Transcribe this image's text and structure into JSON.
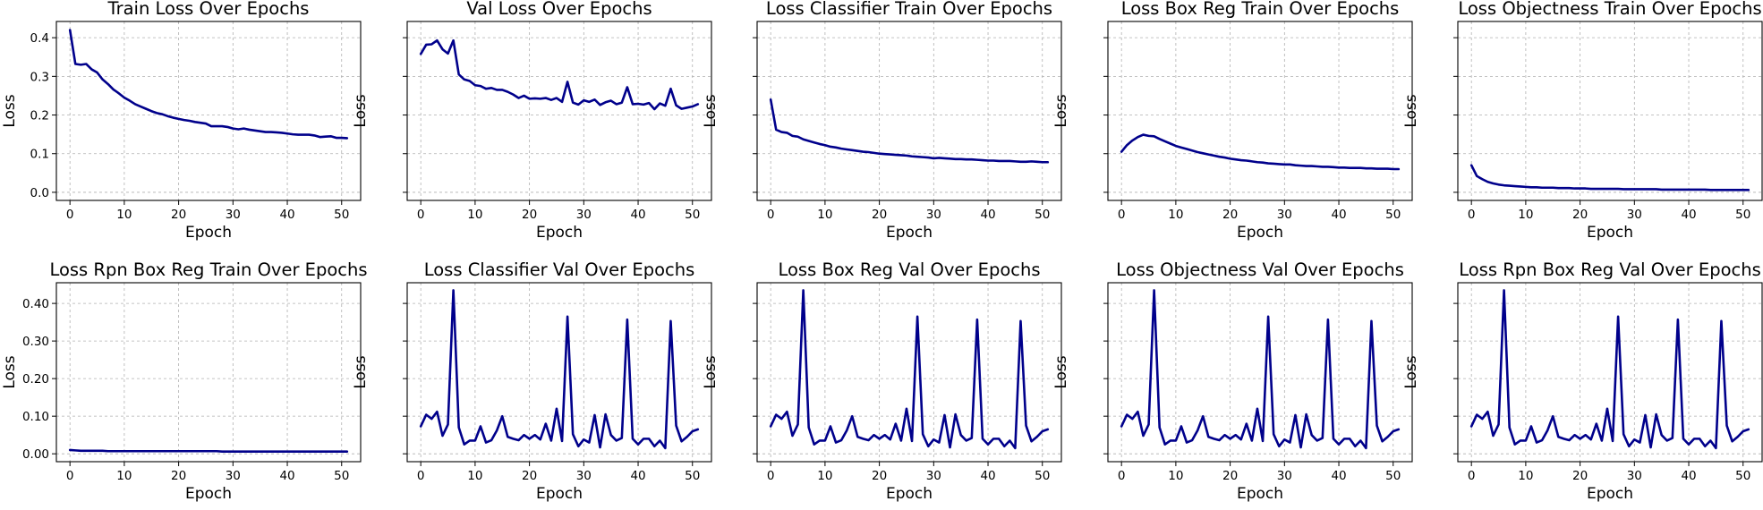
{
  "figure": {
    "line_color": "#00008b",
    "grid": true
  },
  "chart_data": [
    {
      "type": "line",
      "title": "Train Loss Over Epochs",
      "xlabel": "Epoch",
      "ylabel": "Loss",
      "xlim": [
        -2.5,
        53.5
      ],
      "ylim": [
        -0.021,
        0.442
      ],
      "xticks": [
        0,
        10,
        20,
        30,
        40,
        50
      ],
      "yticks": [
        0.0,
        0.1,
        0.2,
        0.3,
        0.4
      ],
      "ytick_labels": [
        "0.0",
        "0.1",
        "0.2",
        "0.3",
        "0.4"
      ],
      "series": [
        {
          "values": [
            0.42,
            0.332,
            0.33,
            0.332,
            0.318,
            0.31,
            0.292,
            0.28,
            0.266,
            0.256,
            0.245,
            0.237,
            0.228,
            0.222,
            0.216,
            0.21,
            0.205,
            0.202,
            0.197,
            0.193,
            0.19,
            0.187,
            0.185,
            0.182,
            0.18,
            0.178,
            0.171,
            0.171,
            0.171,
            0.169,
            0.165,
            0.163,
            0.165,
            0.162,
            0.16,
            0.158,
            0.156,
            0.156,
            0.155,
            0.154,
            0.152,
            0.15,
            0.149,
            0.149,
            0.149,
            0.147,
            0.143,
            0.144,
            0.145,
            0.141,
            0.141,
            0.14
          ]
        }
      ]
    },
    {
      "type": "line",
      "title": "Val Loss Over Epochs",
      "xlabel": "Epoch",
      "ylabel": "Loss",
      "xlim": [
        -2.5,
        53.5
      ],
      "ylim": [
        -0.021,
        0.442
      ],
      "xticks": [
        0,
        10,
        20,
        30,
        40,
        50
      ],
      "yticks": [
        0.0,
        0.1,
        0.2,
        0.3,
        0.4
      ],
      "ytick_labels": [
        "",
        "",
        "",
        "",
        ""
      ],
      "series": [
        {
          "values": [
            0.358,
            0.382,
            0.383,
            0.393,
            0.37,
            0.359,
            0.393,
            0.305,
            0.292,
            0.288,
            0.277,
            0.275,
            0.268,
            0.27,
            0.265,
            0.265,
            0.26,
            0.253,
            0.244,
            0.25,
            0.242,
            0.243,
            0.242,
            0.244,
            0.239,
            0.244,
            0.234,
            0.286,
            0.232,
            0.227,
            0.238,
            0.234,
            0.24,
            0.226,
            0.233,
            0.237,
            0.228,
            0.232,
            0.272,
            0.228,
            0.229,
            0.227,
            0.231,
            0.215,
            0.23,
            0.224,
            0.268,
            0.225,
            0.216,
            0.219,
            0.222,
            0.228
          ]
        }
      ]
    },
    {
      "type": "line",
      "title": "Loss Classifier Train Over Epochs",
      "xlabel": "Epoch",
      "ylabel": "Loss",
      "xlim": [
        -2.5,
        53.5
      ],
      "ylim": [
        -0.021,
        0.442
      ],
      "xticks": [
        0,
        10,
        20,
        30,
        40,
        50
      ],
      "yticks": [
        0.0,
        0.1,
        0.2,
        0.3,
        0.4
      ],
      "ytick_labels": [
        "",
        "",
        "",
        "",
        ""
      ],
      "series": [
        {
          "values": [
            0.24,
            0.162,
            0.156,
            0.154,
            0.146,
            0.144,
            0.137,
            0.133,
            0.129,
            0.125,
            0.122,
            0.118,
            0.116,
            0.113,
            0.111,
            0.109,
            0.107,
            0.105,
            0.104,
            0.102,
            0.1,
            0.099,
            0.098,
            0.097,
            0.096,
            0.095,
            0.093,
            0.092,
            0.091,
            0.09,
            0.088,
            0.089,
            0.088,
            0.087,
            0.086,
            0.086,
            0.085,
            0.085,
            0.084,
            0.083,
            0.082,
            0.082,
            0.081,
            0.081,
            0.081,
            0.08,
            0.079,
            0.079,
            0.08,
            0.079,
            0.078,
            0.078
          ]
        }
      ]
    },
    {
      "type": "line",
      "title": "Loss Box Reg Train Over Epochs",
      "xlabel": "Epoch",
      "ylabel": "Loss",
      "xlim": [
        -2.5,
        53.5
      ],
      "ylim": [
        -0.021,
        0.442
      ],
      "xticks": [
        0,
        10,
        20,
        30,
        40,
        50
      ],
      "yticks": [
        0.0,
        0.1,
        0.2,
        0.3,
        0.4
      ],
      "ytick_labels": [
        "",
        "",
        "",
        "",
        ""
      ],
      "series": [
        {
          "values": [
            0.105,
            0.122,
            0.134,
            0.143,
            0.149,
            0.146,
            0.145,
            0.138,
            0.132,
            0.126,
            0.12,
            0.116,
            0.112,
            0.108,
            0.104,
            0.101,
            0.098,
            0.095,
            0.092,
            0.09,
            0.087,
            0.085,
            0.083,
            0.082,
            0.08,
            0.078,
            0.077,
            0.075,
            0.074,
            0.073,
            0.072,
            0.072,
            0.07,
            0.069,
            0.068,
            0.068,
            0.067,
            0.066,
            0.066,
            0.065,
            0.064,
            0.064,
            0.063,
            0.063,
            0.063,
            0.062,
            0.062,
            0.061,
            0.061,
            0.061,
            0.06,
            0.06
          ]
        }
      ]
    },
    {
      "type": "line",
      "title": "Loss Objectness Train Over Epochs",
      "xlabel": "Epoch",
      "ylabel": "Loss",
      "xlim": [
        -2.5,
        53.5
      ],
      "ylim": [
        -0.021,
        0.442
      ],
      "xticks": [
        0,
        10,
        20,
        30,
        40,
        50
      ],
      "yticks": [
        0.0,
        0.1,
        0.2,
        0.3,
        0.4
      ],
      "ytick_labels": [
        "",
        "",
        "",
        "",
        ""
      ],
      "series": [
        {
          "values": [
            0.07,
            0.042,
            0.034,
            0.027,
            0.023,
            0.02,
            0.018,
            0.017,
            0.016,
            0.015,
            0.014,
            0.013,
            0.013,
            0.012,
            0.012,
            0.012,
            0.011,
            0.011,
            0.011,
            0.01,
            0.01,
            0.01,
            0.009,
            0.009,
            0.009,
            0.009,
            0.009,
            0.009,
            0.008,
            0.008,
            0.008,
            0.008,
            0.008,
            0.008,
            0.008,
            0.007,
            0.007,
            0.007,
            0.007,
            0.007,
            0.007,
            0.007,
            0.007,
            0.007,
            0.006,
            0.006,
            0.006,
            0.006,
            0.006,
            0.006,
            0.006,
            0.006
          ]
        }
      ]
    },
    {
      "type": "line",
      "title": "Loss Rpn Box Reg Train Over Epochs",
      "xlabel": "Epoch",
      "ylabel": "Loss",
      "xlim": [
        -2.5,
        53.5
      ],
      "ylim": [
        -0.021,
        0.455
      ],
      "xticks": [
        0,
        10,
        20,
        30,
        40,
        50
      ],
      "yticks": [
        0.0,
        0.1,
        0.2,
        0.3,
        0.4
      ],
      "ytick_labels": [
        "0.00",
        "0.10",
        "0.20",
        "0.30",
        "0.40"
      ],
      "series": [
        {
          "values": [
            0.01,
            0.009,
            0.008,
            0.008,
            0.008,
            0.008,
            0.008,
            0.007,
            0.007,
            0.007,
            0.007,
            0.007,
            0.007,
            0.007,
            0.007,
            0.007,
            0.007,
            0.007,
            0.007,
            0.007,
            0.007,
            0.007,
            0.007,
            0.007,
            0.007,
            0.007,
            0.007,
            0.007,
            0.006,
            0.006,
            0.006,
            0.006,
            0.006,
            0.006,
            0.006,
            0.006,
            0.006,
            0.006,
            0.006,
            0.006,
            0.006,
            0.006,
            0.006,
            0.006,
            0.006,
            0.006,
            0.006,
            0.006,
            0.006,
            0.006,
            0.006,
            0.006
          ]
        }
      ]
    },
    {
      "type": "line",
      "title": "Loss Classifier Val Over Epochs",
      "xlabel": "Epoch",
      "ylabel": "Loss",
      "xlim": [
        -2.5,
        53.5
      ],
      "ylim": [
        -0.021,
        0.455
      ],
      "xticks": [
        0,
        10,
        20,
        30,
        40,
        50
      ],
      "yticks": [
        0.0,
        0.1,
        0.2,
        0.3,
        0.4
      ],
      "ytick_labels": [
        "",
        "",
        "",
        "",
        ""
      ],
      "series": [
        {
          "values": [
            0.073,
            0.104,
            0.093,
            0.112,
            0.048,
            0.078,
            0.435,
            0.07,
            0.025,
            0.035,
            0.035,
            0.073,
            0.03,
            0.036,
            0.062,
            0.1,
            0.045,
            0.04,
            0.036,
            0.05,
            0.04,
            0.05,
            0.038,
            0.08,
            0.035,
            0.12,
            0.034,
            0.365,
            0.052,
            0.02,
            0.038,
            0.03,
            0.103,
            0.017,
            0.105,
            0.05,
            0.035,
            0.042,
            0.357,
            0.04,
            0.025,
            0.04,
            0.04,
            0.02,
            0.035,
            0.015,
            0.353,
            0.075,
            0.033,
            0.045,
            0.06,
            0.065
          ]
        }
      ]
    },
    {
      "type": "line",
      "title": "Loss Box Reg Val Over Epochs",
      "xlabel": "Epoch",
      "ylabel": "Loss",
      "xlim": [
        -2.5,
        53.5
      ],
      "ylim": [
        -0.021,
        0.455
      ],
      "xticks": [
        0,
        10,
        20,
        30,
        40,
        50
      ],
      "yticks": [
        0.0,
        0.1,
        0.2,
        0.3,
        0.4
      ],
      "ytick_labels": [
        "",
        "",
        "",
        "",
        ""
      ],
      "series": [
        {
          "values": [
            0.073,
            0.104,
            0.093,
            0.112,
            0.048,
            0.078,
            0.435,
            0.07,
            0.025,
            0.035,
            0.035,
            0.073,
            0.03,
            0.036,
            0.062,
            0.1,
            0.045,
            0.04,
            0.036,
            0.05,
            0.04,
            0.05,
            0.038,
            0.08,
            0.035,
            0.12,
            0.034,
            0.365,
            0.052,
            0.02,
            0.038,
            0.03,
            0.103,
            0.017,
            0.105,
            0.05,
            0.035,
            0.042,
            0.357,
            0.04,
            0.025,
            0.04,
            0.04,
            0.02,
            0.035,
            0.015,
            0.353,
            0.075,
            0.033,
            0.045,
            0.06,
            0.065
          ]
        }
      ]
    },
    {
      "type": "line",
      "title": "Loss Objectness Val Over Epochs",
      "xlabel": "Epoch",
      "ylabel": "Loss",
      "xlim": [
        -2.5,
        53.5
      ],
      "ylim": [
        -0.021,
        0.455
      ],
      "xticks": [
        0,
        10,
        20,
        30,
        40,
        50
      ],
      "yticks": [
        0.0,
        0.1,
        0.2,
        0.3,
        0.4
      ],
      "ytick_labels": [
        "",
        "",
        "",
        "",
        ""
      ],
      "series": [
        {
          "values": [
            0.073,
            0.104,
            0.093,
            0.112,
            0.048,
            0.078,
            0.435,
            0.07,
            0.025,
            0.035,
            0.035,
            0.073,
            0.03,
            0.036,
            0.062,
            0.1,
            0.045,
            0.04,
            0.036,
            0.05,
            0.04,
            0.05,
            0.038,
            0.08,
            0.035,
            0.12,
            0.034,
            0.365,
            0.052,
            0.02,
            0.038,
            0.03,
            0.103,
            0.017,
            0.105,
            0.05,
            0.035,
            0.042,
            0.357,
            0.04,
            0.025,
            0.04,
            0.04,
            0.02,
            0.035,
            0.015,
            0.353,
            0.075,
            0.033,
            0.045,
            0.06,
            0.065
          ]
        }
      ]
    },
    {
      "type": "line",
      "title": "Loss Rpn Box Reg Val Over Epochs",
      "xlabel": "Epoch",
      "ylabel": "Loss",
      "xlim": [
        -2.5,
        53.5
      ],
      "ylim": [
        -0.021,
        0.455
      ],
      "xticks": [
        0,
        10,
        20,
        30,
        40,
        50
      ],
      "yticks": [
        0.0,
        0.1,
        0.2,
        0.3,
        0.4
      ],
      "ytick_labels": [
        "",
        "",
        "",
        "",
        ""
      ],
      "series": [
        {
          "values": [
            0.073,
            0.104,
            0.093,
            0.112,
            0.048,
            0.078,
            0.435,
            0.07,
            0.025,
            0.035,
            0.035,
            0.073,
            0.03,
            0.036,
            0.062,
            0.1,
            0.045,
            0.04,
            0.036,
            0.05,
            0.04,
            0.05,
            0.038,
            0.08,
            0.035,
            0.12,
            0.034,
            0.365,
            0.052,
            0.02,
            0.038,
            0.03,
            0.103,
            0.017,
            0.105,
            0.05,
            0.035,
            0.042,
            0.357,
            0.04,
            0.025,
            0.04,
            0.04,
            0.02,
            0.035,
            0.015,
            0.353,
            0.075,
            0.033,
            0.045,
            0.06,
            0.065
          ]
        }
      ]
    }
  ]
}
